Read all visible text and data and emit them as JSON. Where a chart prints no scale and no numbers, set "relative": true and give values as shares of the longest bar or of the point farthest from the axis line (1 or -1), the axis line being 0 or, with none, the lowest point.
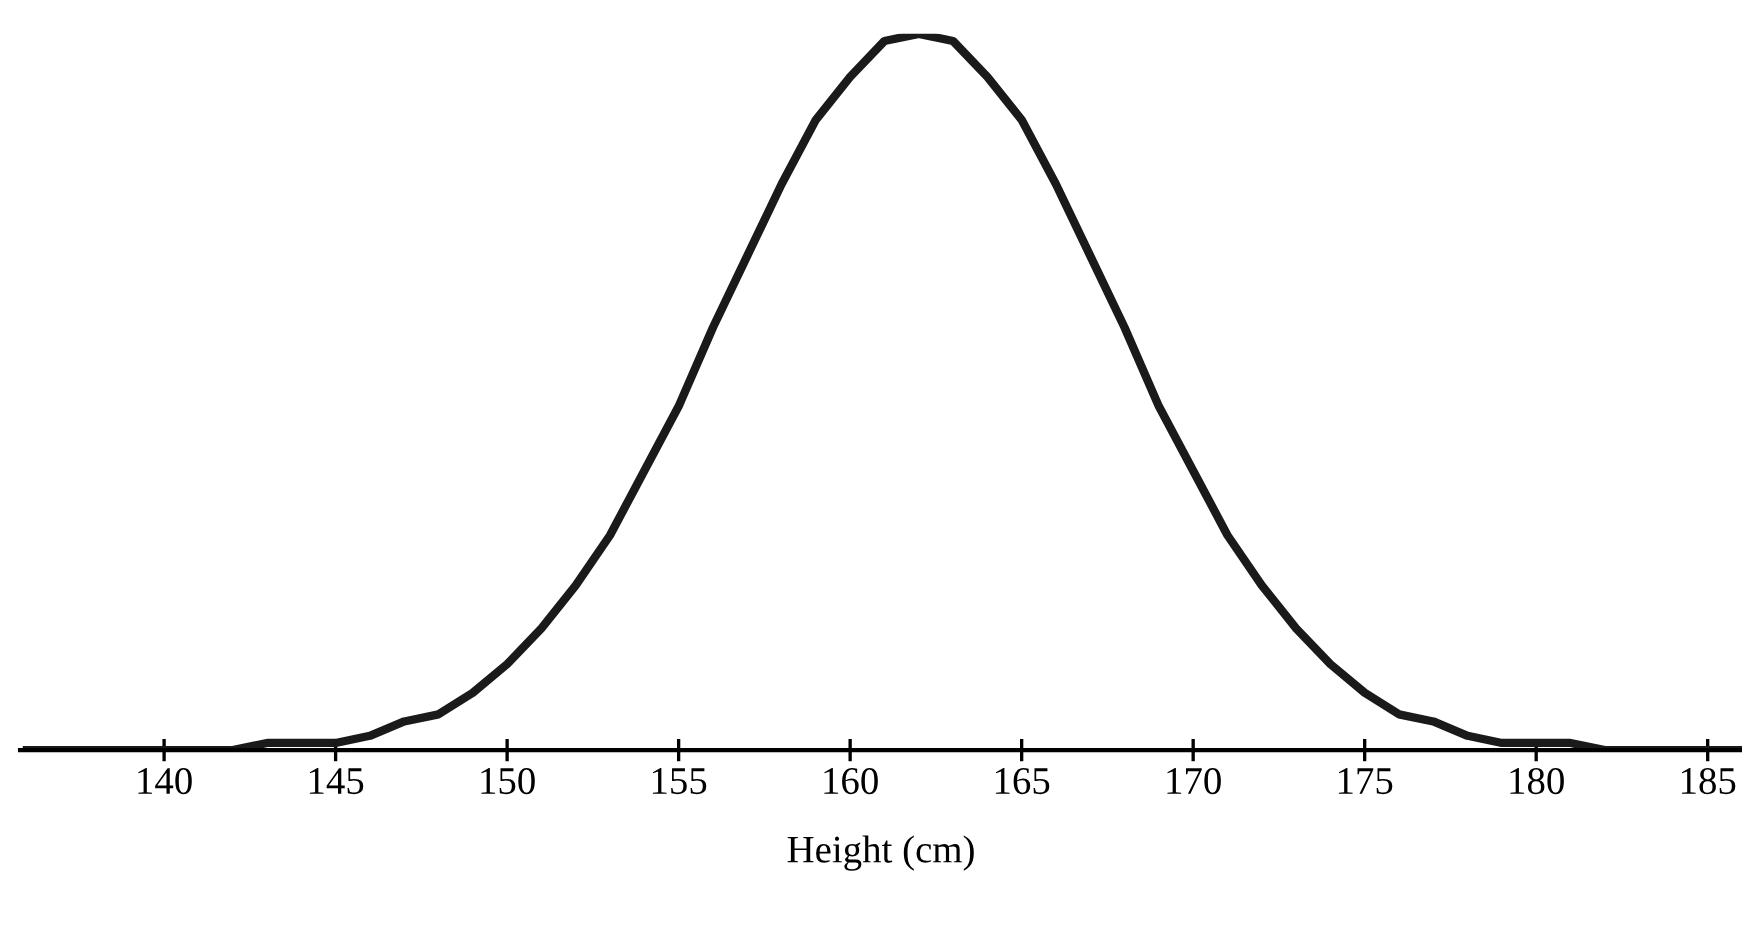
{
  "chart_data": {
    "type": "line",
    "relative": true,
    "xlabel": "Height (cm)",
    "xlim": [
      135.8,
      186
    ],
    "xticks": [
      140,
      145,
      150,
      155,
      160,
      165,
      170,
      175,
      180,
      185
    ],
    "grid": false,
    "legend": false,
    "marker": "none",
    "line_style": "solid",
    "series": [
      {
        "color": "#1a1a1a",
        "x": [
          136,
          137,
          138,
          139,
          140,
          141,
          142,
          143,
          144,
          145,
          146,
          147,
          148,
          149,
          150,
          151,
          152,
          153,
          154,
          155,
          156,
          157,
          158,
          159,
          160,
          161,
          162,
          163,
          164,
          165,
          166,
          167,
          168,
          169,
          170,
          171,
          172,
          173,
          174,
          175,
          176,
          177,
          178,
          179,
          180,
          181,
          182,
          183,
          184,
          185,
          186
        ],
        "values": [
          0,
          0,
          0,
          0,
          0,
          0,
          0,
          0.01,
          0.01,
          0.01,
          0.02,
          0.04,
          0.05,
          0.08,
          0.12,
          0.17,
          0.23,
          0.3,
          0.39,
          0.48,
          0.59,
          0.69,
          0.79,
          0.88,
          0.94,
          0.99,
          1,
          0.99,
          0.94,
          0.88,
          0.79,
          0.69,
          0.59,
          0.48,
          0.39,
          0.3,
          0.23,
          0.17,
          0.12,
          0.08,
          0.05,
          0.04,
          0.02,
          0.01,
          0.01,
          0.01,
          0,
          0,
          0,
          0,
          0
        ]
      }
    ]
  }
}
